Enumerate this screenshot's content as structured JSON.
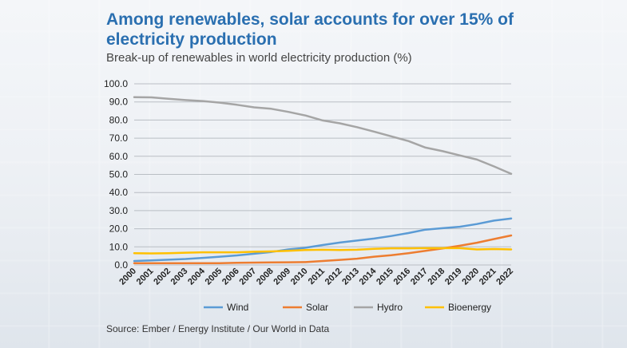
{
  "header": {
    "title": "Among renewables, solar accounts for over 15% of electricity production",
    "subtitle": "Break-up of renewables in world electricity production (%)"
  },
  "footer": {
    "source": "Source: Ember / Energy Institute / Our World in Data"
  },
  "chart_data": {
    "type": "line",
    "title": "Among renewables, solar accounts for over 15% of electricity production",
    "subtitle": "Break-up of renewables in world electricity production (%)",
    "x": [
      "2000",
      "2001",
      "2002",
      "2003",
      "2004",
      "2005",
      "2006",
      "2007",
      "2008",
      "2009",
      "2010",
      "2011",
      "2012",
      "2013",
      "2014",
      "2015",
      "2016",
      "2017",
      "2018",
      "2019",
      "2020",
      "2021",
      "2022"
    ],
    "ylim": [
      0,
      100
    ],
    "yticks": [
      "0.0",
      "10.0",
      "20.0",
      "30.0",
      "40.0",
      "50.0",
      "60.0",
      "70.0",
      "80.0",
      "90.0",
      "100.0"
    ],
    "grid": true,
    "legend_position": "bottom",
    "series": [
      {
        "name": "Wind",
        "color": "#5b9bd5",
        "values": [
          2.2,
          2.5,
          2.9,
          3.3,
          3.9,
          4.6,
          5.3,
          6.2,
          7.2,
          8.6,
          9.5,
          11.0,
          12.4,
          13.5,
          14.6,
          16.0,
          17.6,
          19.5,
          20.3,
          21.1,
          22.6,
          24.5,
          25.7
        ]
      },
      {
        "name": "Solar",
        "color": "#ed7d31",
        "values": [
          1.0,
          1.0,
          1.0,
          1.0,
          1.0,
          1.0,
          1.2,
          1.3,
          1.4,
          1.5,
          1.6,
          2.2,
          2.8,
          3.5,
          4.6,
          5.4,
          6.5,
          7.8,
          9.1,
          10.6,
          12.3,
          14.3,
          16.3
        ]
      },
      {
        "name": "Hydro",
        "color": "#a5a5a5",
        "values": [
          92.6,
          92.5,
          91.7,
          91.0,
          90.5,
          89.6,
          88.4,
          87.0,
          86.2,
          84.5,
          82.5,
          79.8,
          78.2,
          76.1,
          73.6,
          71.0,
          68.4,
          64.8,
          62.8,
          60.5,
          58.2,
          54.4,
          50.3
        ]
      },
      {
        "name": "Bioenergy",
        "color": "#ffc000",
        "values": [
          6.5,
          6.4,
          6.5,
          6.8,
          7.0,
          7.0,
          7.0,
          7.3,
          7.5,
          7.8,
          8.3,
          8.4,
          8.3,
          8.4,
          8.9,
          9.2,
          9.2,
          9.3,
          9.3,
          9.3,
          8.6,
          8.8,
          8.6
        ]
      }
    ]
  }
}
